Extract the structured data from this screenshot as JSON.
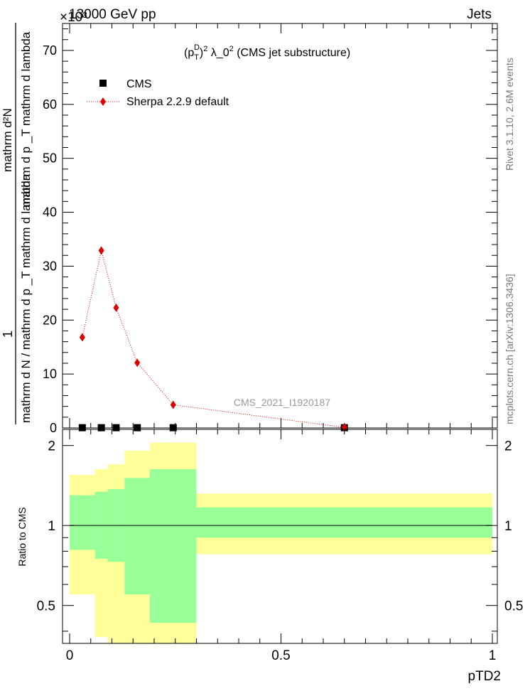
{
  "header": {
    "left": "13000 GeV pp",
    "right": "Jets",
    "exponent": "×10³"
  },
  "side_text": {
    "rivet": "Rivet 3.1.10, 2.6M events",
    "mcplots": "mcplots.cern.ch [arXiv:1306.3436]"
  },
  "watermark": "CMS_2021_I1920187",
  "colors": {
    "cms": "#000000",
    "sherpa": "#dd0000",
    "band_outer": "#ffff99",
    "band_inner": "#99ff99"
  },
  "chart_data": [
    {
      "type": "line",
      "title": "(p_T^D)^2 λ_0^2 (CMS jet substructure)",
      "title_parts": {
        "a": "(p",
        "sub": "T",
        "sup": "D",
        "b": ")",
        "sup2": "2",
        "c": " λ_0",
        "sup3": "2",
        "d": " (CMS jet substructure)"
      },
      "ylabel": {
        "one": "1",
        "denominator": "mathrm d N / mathrm d p _T mathrm d lambda",
        "numerator": "mathrm d²N",
        "numerator_denominator": "mathrm d p _T mathrm d lambda"
      },
      "xlim": [
        0,
        1
      ],
      "ylim": [
        0,
        75
      ],
      "y_scale_label": "×10³",
      "yticks": [
        0,
        10,
        20,
        30,
        40,
        50,
        60,
        70
      ],
      "legend_position": "top-left",
      "series": [
        {
          "name": "CMS",
          "marker": "square",
          "x": [
            0.03,
            0.075,
            0.11,
            0.16,
            0.245,
            0.65
          ],
          "y": [
            0.05,
            0.05,
            0.05,
            0.05,
            0.05,
            0.05
          ]
        },
        {
          "name": "Sherpa 2.2.9 default",
          "marker": "diamond",
          "line": "dotted",
          "x": [
            0.03,
            0.075,
            0.11,
            0.16,
            0.245,
            0.65
          ],
          "y": [
            16.8,
            32.9,
            22.3,
            12.1,
            4.3,
            0.1
          ]
        }
      ]
    },
    {
      "type": "area",
      "ylabel": "Ratio to CMS",
      "xlabel": "pTD2",
      "xlim": [
        0,
        1
      ],
      "ylim": [
        0.36,
        2.3
      ],
      "xticks": [
        0,
        0.5,
        1
      ],
      "xtick_labels": [
        "0",
        "0.5",
        "1"
      ],
      "yticks": [
        0.5,
        1,
        2
      ],
      "ytick_labels": [
        "0.5",
        "1",
        "2"
      ],
      "reference": 1,
      "bins": [
        {
          "lo": 0.0,
          "hi": 0.06,
          "outer": [
            0.55,
            1.55
          ],
          "inner": [
            0.81,
            1.3
          ]
        },
        {
          "lo": 0.06,
          "hi": 0.09,
          "outer": [
            0.38,
            1.63
          ],
          "inner": [
            0.75,
            1.34
          ]
        },
        {
          "lo": 0.09,
          "hi": 0.13,
          "outer": [
            0.33,
            1.7
          ],
          "inner": [
            0.73,
            1.37
          ]
        },
        {
          "lo": 0.13,
          "hi": 0.19,
          "outer": [
            0.33,
            1.91
          ],
          "inner": [
            0.55,
            1.51
          ]
        },
        {
          "lo": 0.19,
          "hi": 0.3,
          "outer": [
            0.33,
            2.05
          ],
          "inner": [
            0.43,
            1.63
          ]
        },
        {
          "lo": 0.3,
          "hi": 1.0,
          "outer": [
            0.78,
            1.32
          ],
          "inner": [
            0.9,
            1.17
          ]
        }
      ]
    }
  ]
}
